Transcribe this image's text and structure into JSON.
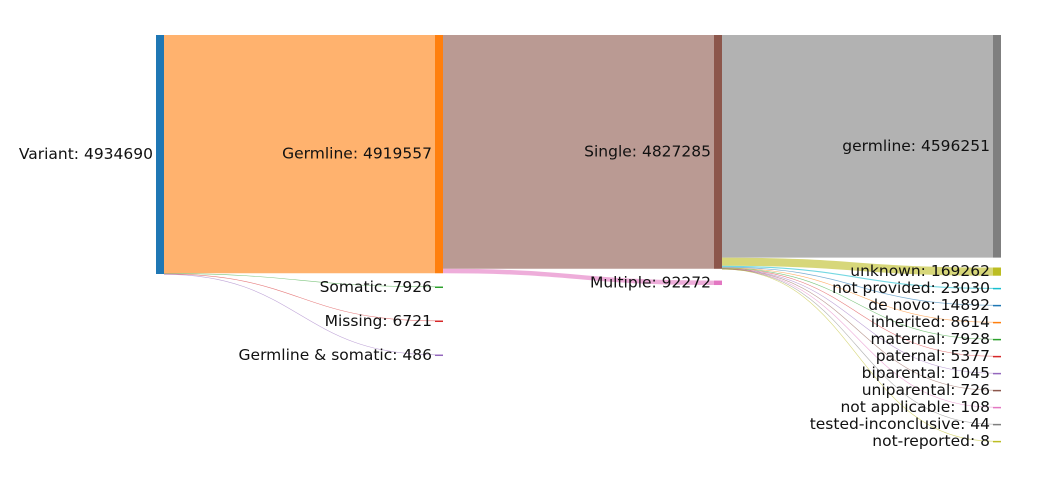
{
  "chart_data": {
    "type": "sankey",
    "title": "",
    "columns": [
      [
        {
          "id": "variant",
          "label": "Variant: 4934690",
          "value": 4934690,
          "color": "#1f77b4"
        }
      ],
      [
        {
          "id": "germline",
          "label": "Germline: 4919557",
          "value": 4919557,
          "color": "#ff7f0e"
        },
        {
          "id": "somatic",
          "label": "Somatic: 7926",
          "value": 7926,
          "color": "#2ca02c"
        },
        {
          "id": "missing",
          "label": "Missing: 6721",
          "value": 6721,
          "color": "#d62728"
        },
        {
          "id": "germ_som",
          "label": "Germline & somatic: 486",
          "value": 486,
          "color": "#9467bd"
        }
      ],
      [
        {
          "id": "single",
          "label": "Single: 4827285",
          "value": 4827285,
          "color": "#8c564b"
        },
        {
          "id": "multiple",
          "label": "Multiple: 92272",
          "value": 92272,
          "color": "#e377c2"
        }
      ],
      [
        {
          "id": "o_germline",
          "label": "germline: 4596251",
          "value": 4596251,
          "color": "#7f7f7f"
        },
        {
          "id": "o_unknown",
          "label": "unknown: 169262",
          "value": 169262,
          "color": "#bcbd22"
        },
        {
          "id": "o_notprov",
          "label": "not provided: 23030",
          "value": 23030,
          "color": "#17becf"
        },
        {
          "id": "o_denovo",
          "label": "de novo: 14892",
          "value": 14892,
          "color": "#1f77b4"
        },
        {
          "id": "o_inherited",
          "label": "inherited: 8614",
          "value": 8614,
          "color": "#ff7f0e"
        },
        {
          "id": "o_maternal",
          "label": "maternal: 7928",
          "value": 7928,
          "color": "#2ca02c"
        },
        {
          "id": "o_paternal",
          "label": "paternal: 5377",
          "value": 5377,
          "color": "#d62728"
        },
        {
          "id": "o_biparental",
          "label": "biparental: 1045",
          "value": 1045,
          "color": "#9467bd"
        },
        {
          "id": "o_uniparental",
          "label": "uniparental: 726",
          "value": 726,
          "color": "#8c564b"
        },
        {
          "id": "o_notapplicable",
          "label": "not applicable: 108",
          "value": 108,
          "color": "#e377c2"
        },
        {
          "id": "o_testedinc",
          "label": "tested-inconclusive: 44",
          "value": 44,
          "color": "#7f7f7f"
        },
        {
          "id": "o_notreported",
          "label": "not-reported: 8",
          "value": 8,
          "color": "#bcbd22"
        }
      ]
    ],
    "links": [
      {
        "source": "variant",
        "target": "germline",
        "value": 4919557
      },
      {
        "source": "variant",
        "target": "somatic",
        "value": 7926
      },
      {
        "source": "variant",
        "target": "missing",
        "value": 6721
      },
      {
        "source": "variant",
        "target": "germ_som",
        "value": 486
      },
      {
        "source": "germline",
        "target": "single",
        "value": 4827285
      },
      {
        "source": "germline",
        "target": "multiple",
        "value": 92272
      },
      {
        "source": "single",
        "target": "o_germline",
        "value": 4596251
      },
      {
        "source": "single",
        "target": "o_unknown",
        "value": 169262
      },
      {
        "source": "single",
        "target": "o_notprov",
        "value": 23030
      },
      {
        "source": "single",
        "target": "o_denovo",
        "value": 14892
      },
      {
        "source": "single",
        "target": "o_inherited",
        "value": 8614
      },
      {
        "source": "single",
        "target": "o_maternal",
        "value": 7928
      },
      {
        "source": "single",
        "target": "o_paternal",
        "value": 5377
      },
      {
        "source": "single",
        "target": "o_biparental",
        "value": 1045
      },
      {
        "source": "single",
        "target": "o_uniparental",
        "value": 726
      },
      {
        "source": "single",
        "target": "o_notapplicable",
        "value": 108
      },
      {
        "source": "single",
        "target": "o_testedinc",
        "value": 44
      },
      {
        "source": "single",
        "target": "o_notreported",
        "value": 8
      }
    ]
  }
}
